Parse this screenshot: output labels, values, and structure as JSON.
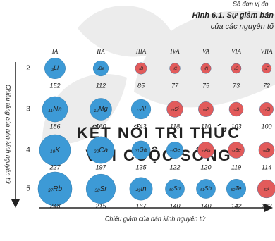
{
  "chart_data": {
    "type": "bubble",
    "top_note": "Số đơn vị đo",
    "title": [
      "Hình 6.1. Sự giảm bán",
      "của các nguyên tố"
    ],
    "watermark": [
      "KẾT NỐI TRI THỨC",
      "VỚI CUỘC SỐNG"
    ],
    "x_label": "Chiều giảm của bán kính nguyên tử",
    "y_label": "Chiều tăng của bán kính nguyên tử",
    "categories": [
      "IA",
      "IIA",
      "IIIA",
      "IVA",
      "VA",
      "VIA",
      "VIIA"
    ],
    "series": [
      {
        "name": "2",
        "numbers": [
          "3",
          "4",
          "5",
          "6",
          "7",
          "8",
          "9"
        ],
        "symbols": [
          "Li",
          "Be",
          "B",
          "C",
          "N",
          "O",
          "F"
        ],
        "colors": [
          "#3d9ad6",
          "#3d9ad6",
          "#e25b5b",
          "#e25b5b",
          "#e25b5b",
          "#e25b5b",
          "#e25b5b"
        ],
        "values": [
          152,
          112,
          85,
          77,
          75,
          73,
          72
        ]
      },
      {
        "name": "3",
        "numbers": [
          "11",
          "12",
          "13",
          "14",
          "15",
          "16",
          "17"
        ],
        "symbols": [
          "Na",
          "Mg",
          "Al",
          "Si",
          "P",
          "S",
          "Cl"
        ],
        "colors": [
          "#3d9ad6",
          "#3d9ad6",
          "#3d9ad6",
          "#e25b5b",
          "#e25b5b",
          "#e25b5b",
          "#e25b5b"
        ],
        "values": [
          186,
          160,
          143,
          118,
          110,
          103,
          100
        ]
      },
      {
        "name": "4",
        "numbers": [
          "19",
          "20",
          "31",
          "32",
          "33",
          "34",
          "35"
        ],
        "symbols": [
          "K",
          "Ca",
          "Ga",
          "Ge",
          "As",
          "Se",
          "Br"
        ],
        "colors": [
          "#3d9ad6",
          "#3d9ad6",
          "#3d9ad6",
          "#3d9ad6",
          "#e25b5b",
          "#e25b5b",
          "#e25b5b"
        ],
        "values": [
          227,
          197,
          135,
          122,
          120,
          119,
          114
        ]
      },
      {
        "name": "5",
        "numbers": [
          "37",
          "38",
          "49",
          "50",
          "51",
          "52",
          "53"
        ],
        "symbols": [
          "Rb",
          "Sr",
          "In",
          "Sn",
          "Sb",
          "Te",
          "I"
        ],
        "colors": [
          "#3d9ad6",
          "#3d9ad6",
          "#3d9ad6",
          "#3d9ad6",
          "#3d9ad6",
          "#3d9ad6",
          "#e25b5b"
        ],
        "values": [
          248,
          215,
          167,
          140,
          140,
          142,
          133
        ]
      }
    ]
  }
}
